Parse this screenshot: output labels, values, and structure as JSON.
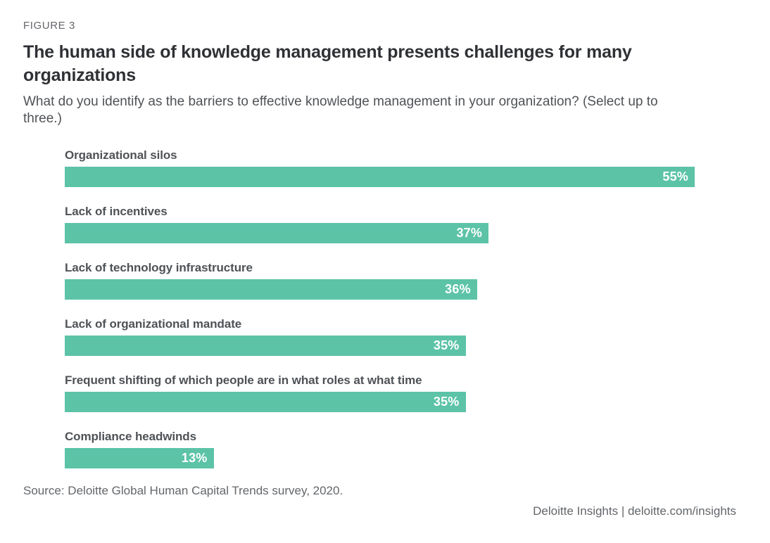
{
  "figure_label": "FIGURE 3",
  "title": "The human side of knowledge management presents challenges for many organizations",
  "subtitle": "What do you identify as the barriers to effective knowledge management in your organization? (Select up to three.)",
  "source": "Source: Deloitte Global Human Capital Trends survey, 2020.",
  "footer": "Deloitte Insights | deloitte.com/insights",
  "colors": {
    "bar": "#5CC3A7",
    "title_text": "#2F3135",
    "label_text": "#4E5256",
    "muted_text": "#63666A",
    "value_text": "#FFFFFF",
    "background": "#FFFFFF"
  },
  "chart_data": {
    "type": "bar",
    "orientation": "horizontal",
    "title": "The human side of knowledge management presents challenges for many organizations",
    "subtitle": "What do you identify as the barriers to effective knowledge management in your organization? (Select up to three.)",
    "categories": [
      "Organizational silos",
      "Lack of incentives",
      "Lack of technology infrastructure",
      "Lack of organizational mandate",
      "Frequent shifting of which people are in what roles at what time",
      "Compliance headwinds"
    ],
    "values": [
      55,
      37,
      36,
      35,
      35,
      13
    ],
    "value_labels": [
      "55%",
      "37%",
      "36%",
      "35%",
      "35%",
      "13%"
    ],
    "value_suffix": "%",
    "xlabel": "",
    "ylabel": "",
    "axis_visible": false,
    "grid": false,
    "legend": false,
    "data_labels_position": "inside-end",
    "source": "Deloitte Global Human Capital Trends survey, 2020"
  }
}
